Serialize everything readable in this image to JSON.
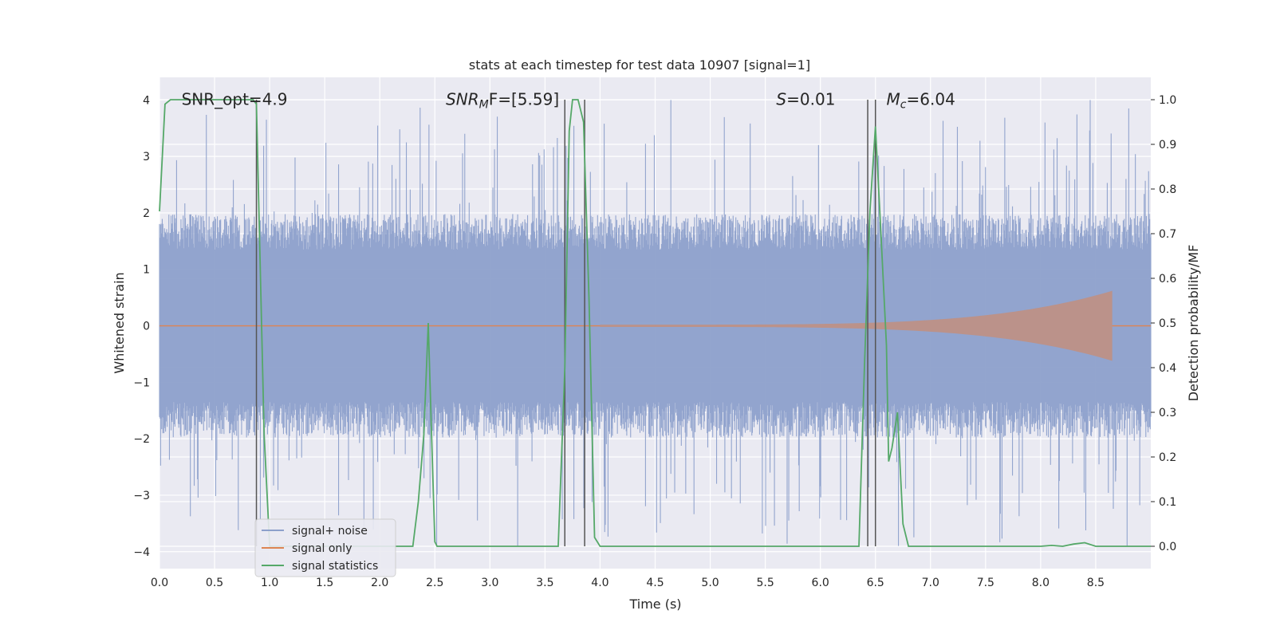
{
  "chart_data": {
    "type": "line",
    "title": "stats at each timestep for test data 10907 [signal=1]",
    "xlabel": "Time (s)",
    "ylabel_left": "Whitened strain",
    "ylabel_right": "Detection probability/MF",
    "xlim": [
      0.0,
      9.0
    ],
    "ylim_left": [
      -4.3,
      4.4
    ],
    "ylim_right": [
      -0.05,
      1.05
    ],
    "x_ticks": [
      "0.0",
      "0.5",
      "1.0",
      "1.5",
      "2.0",
      "2.5",
      "3.0",
      "3.5",
      "4.0",
      "4.5",
      "5.0",
      "5.5",
      "6.0",
      "6.5",
      "7.0",
      "7.5",
      "8.0",
      "8.5"
    ],
    "x_tick_values": [
      0.0,
      0.5,
      1.0,
      1.5,
      2.0,
      2.5,
      3.0,
      3.5,
      4.0,
      4.5,
      5.0,
      5.5,
      6.0,
      6.5,
      7.0,
      7.5,
      8.0,
      8.5
    ],
    "y_left_ticks": [
      "4",
      "3",
      "2",
      "1",
      "0",
      "−1",
      "−2",
      "−3",
      "−4"
    ],
    "y_left_tick_values": [
      4,
      3,
      2,
      1,
      0,
      -1,
      -2,
      -3,
      -4
    ],
    "y_right_ticks": [
      "1.0",
      "0.9",
      "0.8",
      "0.7",
      "0.6",
      "0.5",
      "0.4",
      "0.3",
      "0.2",
      "0.1",
      "0.0"
    ],
    "y_right_tick_values": [
      1.0,
      0.9,
      0.8,
      0.7,
      0.6,
      0.5,
      0.4,
      0.3,
      0.2,
      0.1,
      0.0
    ],
    "grid": true,
    "legend_position": "lower-left",
    "series": [
      {
        "name": "signal+ noise",
        "axis": "left",
        "color": "#8da0cb",
        "envelope": {
          "upper_typical": 1.8,
          "lower_typical": -1.8,
          "spike_max": 4.0,
          "spike_min": -3.9
        }
      },
      {
        "name": "signal only",
        "axis": "left",
        "color": "#dd8452",
        "chirp": {
          "start": 4.0,
          "end": 8.65,
          "amp_start": 0.02,
          "amp_peak": 0.62
        }
      },
      {
        "name": "signal statistics",
        "axis": "right",
        "color": "#55a868",
        "x": [
          0.0,
          0.05,
          0.1,
          0.2,
          0.5,
          0.85,
          0.88,
          0.95,
          1.0,
          1.5,
          2.0,
          2.3,
          2.35,
          2.4,
          2.44,
          2.47,
          2.5,
          2.52,
          2.6,
          3.0,
          3.5,
          3.62,
          3.68,
          3.72,
          3.75,
          3.8,
          3.85,
          3.9,
          3.95,
          4.0,
          4.5,
          5.0,
          5.5,
          6.0,
          6.35,
          6.4,
          6.45,
          6.5,
          6.55,
          6.6,
          6.62,
          6.65,
          6.7,
          6.75,
          6.8,
          7.0,
          7.5,
          8.0,
          8.1,
          8.2,
          8.3,
          8.4,
          8.5,
          9.0
        ],
        "y": [
          0.75,
          0.99,
          1.0,
          1.0,
          1.0,
          1.0,
          0.99,
          0.25,
          0.0,
          0.0,
          0.0,
          0.0,
          0.1,
          0.25,
          0.5,
          0.25,
          0.01,
          0.0,
          0.0,
          0.0,
          0.0,
          0.0,
          0.4,
          0.93,
          1.0,
          1.0,
          0.95,
          0.55,
          0.02,
          0.0,
          0.0,
          0.0,
          0.0,
          0.0,
          0.0,
          0.4,
          0.75,
          0.94,
          0.7,
          0.45,
          0.19,
          0.22,
          0.3,
          0.05,
          0.0,
          0.0,
          0.0,
          0.0,
          0.002,
          0.0,
          0.005,
          0.008,
          0.0,
          0.0
        ]
      }
    ],
    "vertical_lines": [
      0.88,
      3.68,
      3.86,
      6.43,
      6.5
    ],
    "vertical_line_range_right": [
      0.0,
      1.0
    ],
    "annotations": [
      {
        "id": "snr-opt",
        "text": "SNR_opt=4.9",
        "x": 0.2,
        "y": 4.0
      },
      {
        "id": "snr-mf",
        "base": "SNR",
        "sub": "M",
        "suffix": "F=[5.59]",
        "x": 2.6,
        "y": 4.0
      },
      {
        "id": "s-stat",
        "base": "S",
        "suffix": "=0.01",
        "x": 5.6,
        "y": 4.0
      },
      {
        "id": "mc",
        "base": "M",
        "sub": "c",
        "suffix": "=6.04",
        "x": 6.6,
        "y": 4.0
      }
    ]
  }
}
